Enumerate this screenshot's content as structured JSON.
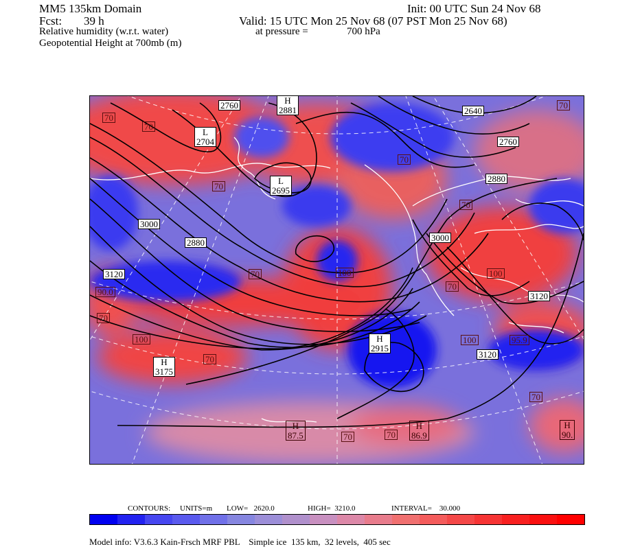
{
  "header": {
    "domain": "MM5 135km Domain",
    "init": "Init: 00 UTC Sun 24 Nov 68",
    "fcst_label": "Fcst:",
    "fcst_value": "39 h",
    "valid": "Valid: 15 UTC Mon 25 Nov 68 (07 PST Mon 25 Nov 68)",
    "field1": "Relative humidity (w.r.t. water)",
    "pressure_label": "at pressure =",
    "pressure_value": "700 hPa",
    "field2": "Geopotential Height at 700mb (m)"
  },
  "height_labels": [
    "2760",
    "2881",
    "2640",
    "2704",
    "2760",
    "2695",
    "2880",
    "3000",
    "2880",
    "3000",
    "3120",
    "3120",
    "3120",
    "3175",
    "2915"
  ],
  "rh_labels": [
    "70",
    "70",
    "70",
    "70",
    "70",
    "70",
    "70",
    "70",
    "70",
    "70",
    "70",
    "70",
    "70",
    "100",
    "100",
    "100",
    "100",
    "90.0",
    "95.9",
    "87.5",
    "86.9",
    "90."
  ],
  "hl_markers": [
    {
      "letter": "H",
      "value": "2881"
    },
    {
      "letter": "L",
      "value": "2704"
    },
    {
      "letter": "L",
      "value": "2695"
    },
    {
      "letter": "H",
      "value": "3175"
    },
    {
      "letter": "H",
      "value": "2915"
    },
    {
      "letter": "H",
      "value": "87.5"
    },
    {
      "letter": "H",
      "value": "86.9"
    },
    {
      "letter": "H",
      "value": "90."
    }
  ],
  "contours_info": {
    "contours": "CONTOURS:",
    "units": "UNITS=m",
    "low": "LOW=   2620.0",
    "high": "HIGH=  3210.0",
    "interval": "INTERVAL=    30.000"
  },
  "colorbar_colors": [
    "#0000f0",
    "#2222f0",
    "#4646f0",
    "#5a5aee",
    "#7070e8",
    "#8686e0",
    "#9c8ed8",
    "#b090cc",
    "#c890c0",
    "#dc88a8",
    "#e87c8c",
    "#f07070",
    "#f45c5c",
    "#f44848",
    "#f63434",
    "#f82020",
    "#fa1010",
    "#ff0000"
  ],
  "model_info": "Model info: V3.6.3 Kain-Frsch MRF PBL    Simple ice  135 km,  32 levels,  405 sec"
}
